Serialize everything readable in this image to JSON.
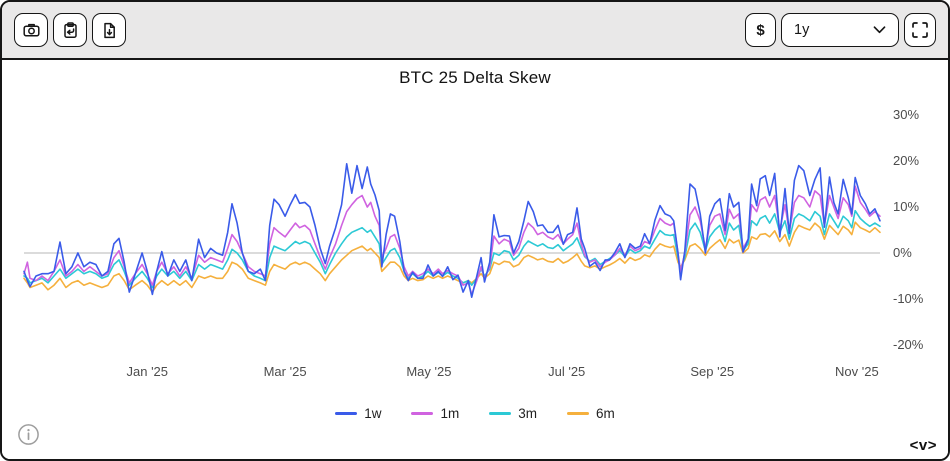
{
  "toolbar": {
    "left_buttons": [
      {
        "icon": "camera-icon"
      },
      {
        "icon": "clipboard-copy-icon"
      },
      {
        "icon": "file-download-icon"
      }
    ],
    "currency_label": "$",
    "timeframe_value": "1y"
  },
  "chart": {
    "title": "BTC 25 Delta Skew"
  },
  "footer": {
    "logo_text": "<v>"
  },
  "colors": {
    "frame_border": "#161616",
    "toolbar_bg": "#e9e8e8",
    "zero_line": "#cfcfcf",
    "axis_text": "#4c4c4c"
  },
  "chart_data": {
    "type": "line",
    "title": "BTC 25 Delta Skew",
    "xlabel": "",
    "ylabel": "",
    "y_unit": "%",
    "ylim": [
      -24,
      33
    ],
    "grid": false,
    "zero_line": true,
    "legend_position": "bottom",
    "y_axis_side": "right",
    "x_range": [
      "Nov '24",
      "Nov '25"
    ],
    "x_ticks": [
      {
        "label": "Jan '25",
        "pos": 0.144
      },
      {
        "label": "Mar '25",
        "pos": 0.305
      },
      {
        "label": "May '25",
        "pos": 0.473
      },
      {
        "label": "Jul '25",
        "pos": 0.634
      },
      {
        "label": "Sep '25",
        "pos": 0.804
      },
      {
        "label": "Nov '25",
        "pos": 0.973
      }
    ],
    "y_ticks": [
      {
        "label": "30%",
        "value": 30
      },
      {
        "label": "20%",
        "value": 20
      },
      {
        "label": "10%",
        "value": 10
      },
      {
        "label": "0%",
        "value": 0
      },
      {
        "label": "-10%",
        "value": -10
      },
      {
        "label": "-20%",
        "value": -20
      }
    ],
    "x": [
      0,
      0.004,
      0.007,
      0.014,
      0.021,
      0.028,
      0.035,
      0.042,
      0.049,
      0.056,
      0.063,
      0.07,
      0.077,
      0.084,
      0.091,
      0.098,
      0.105,
      0.111,
      0.117,
      0.123,
      0.13,
      0.138,
      0.144,
      0.15,
      0.155,
      0.161,
      0.168,
      0.175,
      0.182,
      0.189,
      0.196,
      0.204,
      0.211,
      0.218,
      0.225,
      0.232,
      0.238,
      0.243,
      0.249,
      0.255,
      0.262,
      0.269,
      0.276,
      0.282,
      0.287,
      0.292,
      0.298,
      0.305,
      0.311,
      0.317,
      0.322,
      0.328,
      0.334,
      0.34,
      0.346,
      0.352,
      0.357,
      0.364,
      0.371,
      0.377,
      0.383,
      0.389,
      0.395,
      0.401,
      0.405,
      0.41,
      0.415,
      0.418,
      0.423,
      0.428,
      0.433,
      0.439,
      0.444,
      0.449,
      0.454,
      0.46,
      0.466,
      0.472,
      0.478,
      0.484,
      0.489,
      0.495,
      0.501,
      0.507,
      0.513,
      0.519,
      0.523,
      0.529,
      0.534,
      0.538,
      0.544,
      0.549,
      0.555,
      0.561,
      0.567,
      0.572,
      0.578,
      0.584,
      0.589,
      0.595,
      0.6,
      0.606,
      0.612,
      0.618,
      0.624,
      0.63,
      0.635,
      0.641,
      0.646,
      0.651,
      0.655,
      0.661,
      0.667,
      0.673,
      0.679,
      0.684,
      0.69,
      0.696,
      0.702,
      0.708,
      0.714,
      0.72,
      0.725,
      0.731,
      0.737,
      0.743,
      0.749,
      0.755,
      0.759,
      0.764,
      0.767,
      0.772,
      0.778,
      0.784,
      0.79,
      0.796,
      0.801,
      0.807,
      0.813,
      0.819,
      0.824,
      0.829,
      0.835,
      0.84,
      0.846,
      0.85,
      0.856,
      0.86,
      0.866,
      0.871,
      0.877,
      0.883,
      0.889,
      0.894,
      0.9,
      0.905,
      0.911,
      0.918,
      0.924,
      0.93,
      0.935,
      0.941,
      0.946,
      0.951,
      0.957,
      0.963,
      0.967,
      0.971,
      0.977,
      0.983,
      0.988,
      0.994,
      1
    ],
    "series": [
      {
        "name": "1w",
        "color": "#3a5be9",
        "values": [
          -4,
          -6,
          -7.3,
          -5,
          -4.5,
          -4.5,
          -4,
          2.4,
          -4.5,
          -3,
          0,
          -3,
          -2,
          -2.5,
          -5,
          -4,
          2,
          3.2,
          -2,
          -8.5,
          -4.5,
          0,
          -4,
          -9,
          -4,
          0.3,
          -5,
          -1.5,
          -4,
          -1.5,
          -6,
          3,
          -1,
          1,
          0,
          -0.5,
          4.5,
          10.7,
          6.5,
          0,
          -4,
          -4.5,
          -3.5,
          -6,
          6,
          11.7,
          10.5,
          8,
          10.5,
          12.7,
          10.8,
          11,
          10,
          6,
          1,
          -2.3,
          1.5,
          5.5,
          10.5,
          19.4,
          13,
          19,
          14,
          18.7,
          15,
          12.6,
          9.2,
          -3,
          4,
          8.5,
          8,
          2.5,
          -4,
          -6,
          -4.2,
          -5.5,
          -5.5,
          -2.6,
          -5,
          -4,
          -5.1,
          -3,
          -5.8,
          -4.8,
          -8.5,
          -6,
          -9.6,
          -5,
          -1,
          -6.3,
          -2,
          8.3,
          3.5,
          3.8,
          3.7,
          0,
          2.5,
          7,
          11.2,
          9,
          5.9,
          6.1,
          4.5,
          4.5,
          6,
          1.9,
          4,
          4.5,
          9.8,
          3,
          1,
          -2.9,
          -2,
          -3.8,
          -1.5,
          -1.5,
          0,
          2,
          -1,
          2,
          1,
          1.5,
          4.2,
          2,
          7.1,
          10.3,
          8.5,
          8,
          7,
          0,
          -5.8,
          0.5,
          15,
          13.9,
          8.5,
          0,
          8,
          10.7,
          11.8,
          4.9,
          12.9,
          10,
          11,
          0.2,
          3,
          15,
          10.3,
          16.1,
          16.8,
          12.5,
          17.3,
          3.5,
          14,
          4.2,
          15.8,
          19,
          17.9,
          12.5,
          16,
          18.5,
          5.6,
          16.5,
          11,
          8.5,
          16,
          12,
          8.5,
          16.4,
          12.5,
          10.7,
          8.5,
          9.6,
          7
        ]
      },
      {
        "name": "1m",
        "color": "#d063e0",
        "values": [
          -4.5,
          -2,
          -5.5,
          -6,
          -5,
          -6,
          -4,
          -1.5,
          -5,
          -4,
          -2.5,
          -4,
          -3,
          -4,
          -5,
          -4.5,
          -1,
          0.5,
          -3,
          -6.5,
          -4.5,
          -2.5,
          -4.5,
          -7,
          -4,
          -2,
          -4.5,
          -3,
          -5,
          -3,
          -5.5,
          -0.5,
          -2,
          -1,
          -1.5,
          -2,
          1,
          4,
          2.5,
          0,
          -3,
          -4,
          -4.5,
          -5,
          2,
          5.5,
          4.5,
          3.5,
          5,
          6.5,
          5.5,
          6,
          5,
          2,
          -1,
          -3.5,
          -1,
          2,
          6,
          9,
          10.5,
          11.8,
          12.5,
          10,
          11,
          8,
          6,
          -1,
          1,
          3.5,
          4,
          1,
          -3,
          -5,
          -4,
          -5,
          -4.5,
          -3.5,
          -4.5,
          -3.5,
          -4.5,
          -3.8,
          -4.5,
          -5,
          -7,
          -6.5,
          -9,
          -6,
          -3,
          -5.5,
          -3,
          3.7,
          2,
          3,
          2.5,
          -0.5,
          1,
          4.5,
          6.5,
          5.5,
          4,
          4.5,
          3.5,
          3,
          4,
          2,
          3,
          4,
          6.5,
          2,
          -0.5,
          -2,
          -1.5,
          -3,
          -2,
          -1.5,
          -0.5,
          1,
          -0.5,
          1.5,
          0.5,
          1,
          2.5,
          2,
          5,
          7.5,
          6.5,
          6,
          6.5,
          0,
          -4.1,
          0,
          8.3,
          10,
          7,
          1,
          6,
          8,
          8.5,
          4,
          9.5,
          7.5,
          8.5,
          1,
          3,
          10.5,
          9,
          11.5,
          12.2,
          10,
          12.5,
          5,
          10.5,
          4.5,
          11,
          12.5,
          12,
          10,
          13.5,
          12.5,
          6,
          12.5,
          10,
          7.5,
          12,
          10.5,
          8,
          14.5,
          11,
          9.5,
          8,
          9,
          8
        ]
      },
      {
        "name": "3m",
        "color": "#2cc9d5",
        "values": [
          -5,
          -5.5,
          -6.5,
          -6,
          -5.5,
          -6.5,
          -5,
          -3.5,
          -5.5,
          -4.5,
          -3.5,
          -4.5,
          -4,
          -4.5,
          -5.5,
          -5,
          -2.5,
          -1.5,
          -4,
          -7,
          -5.5,
          -4,
          -5.5,
          -7.5,
          -5,
          -3.5,
          -5,
          -4,
          -5.5,
          -4,
          -6,
          -2.5,
          -3.5,
          -2.5,
          -3,
          -3.5,
          -1.5,
          0.8,
          0,
          -1.5,
          -4,
          -5,
          -5.5,
          -6,
          -1,
          1.5,
          1,
          0.5,
          1.5,
          2.5,
          2,
          2.5,
          2,
          0,
          -2,
          -4.5,
          -2.5,
          0,
          2,
          3.5,
          4.5,
          5,
          5.5,
          4.5,
          5,
          3.5,
          2,
          -2.5,
          -1,
          0.5,
          1,
          -1,
          -4,
          -5.5,
          -4.5,
          -5.5,
          -5,
          -4,
          -5,
          -4.2,
          -5,
          -4.2,
          -5,
          -5.5,
          -6.5,
          -6,
          -7,
          -5.5,
          -3.5,
          -5,
          -3.5,
          0,
          -0.5,
          0.5,
          0.2,
          -1.5,
          -0.5,
          1.5,
          2.6,
          2,
          1.5,
          2,
          1.2,
          1,
          1.8,
          0.5,
          1.2,
          2,
          3.3,
          1,
          -0.8,
          -1.8,
          -1.2,
          -2.5,
          -1.8,
          -1.2,
          -0.5,
          0.5,
          -0.8,
          0.8,
          0,
          0.5,
          1.5,
          1,
          3,
          4.9,
          4,
          3.8,
          4,
          -1,
          -3.5,
          -1,
          5,
          6.5,
          4.5,
          0.5,
          3.5,
          5,
          6,
          2.5,
          6.5,
          5,
          6,
          0.5,
          2,
          7,
          6,
          7.5,
          8.1,
          6.5,
          8.5,
          4.5,
          7,
          3,
          7.5,
          8.5,
          8,
          7,
          9,
          8,
          4,
          8.5,
          7,
          5.5,
          8,
          7,
          5.5,
          9.2,
          7.5,
          6.5,
          5.8,
          6.5,
          5.8
        ]
      },
      {
        "name": "6m",
        "color": "#f5b03d",
        "values": [
          -5.5,
          -6.5,
          -7.5,
          -7,
          -6.5,
          -8,
          -7,
          -5.5,
          -7.5,
          -6.5,
          -6,
          -7,
          -6.5,
          -7,
          -7.5,
          -7,
          -5,
          -4.5,
          -6,
          -8,
          -7,
          -6,
          -7,
          -8.5,
          -7,
          -6,
          -7,
          -6,
          -7,
          -6,
          -7.5,
          -5,
          -5.5,
          -5,
          -5.5,
          -5.5,
          -4,
          -2,
          -2.5,
          -3.5,
          -5.5,
          -6,
          -6.5,
          -7,
          -4,
          -2.5,
          -3,
          -3.5,
          -2.5,
          -2,
          -2.5,
          -2,
          -2.5,
          -3.5,
          -4.5,
          -6,
          -4.5,
          -3,
          -1.5,
          -0.5,
          0.5,
          1,
          1.5,
          0.5,
          1,
          0,
          -1,
          -4,
          -3,
          -2,
          -2,
          -3,
          -5,
          -6,
          -5.5,
          -6,
          -5.8,
          -5,
          -5.5,
          -5,
          -5.5,
          -5,
          -5.5,
          -6,
          -6.5,
          -6,
          -6.5,
          -5.5,
          -4.5,
          -5.5,
          -4.5,
          -2,
          -2.5,
          -1.8,
          -2,
          -3,
          -2.5,
          -1,
          -0.5,
          -1,
          -1.5,
          -1.2,
          -1.8,
          -2,
          -1.2,
          -2.2,
          -1.8,
          -1,
          -0.2,
          -1.8,
          -2.8,
          -3.2,
          -2.8,
          -3.5,
          -3,
          -2.6,
          -2,
          -1.2,
          -2.2,
          -1,
          -1.6,
          -1.2,
          -0.4,
          -0.8,
          0.8,
          2,
          1.5,
          1.2,
          1.5,
          -2,
          -3,
          -1.5,
          1.5,
          2,
          1,
          -0.5,
          1,
          2,
          2.9,
          1,
          3,
          2.2,
          2.8,
          0,
          1,
          3.5,
          3,
          4,
          4.2,
          3.5,
          4.8,
          2.5,
          4,
          1.5,
          4.5,
          6,
          5.5,
          5,
          6.5,
          5.5,
          3,
          6,
          5,
          4,
          5.8,
          5,
          4,
          6.7,
          5.5,
          5,
          4.5,
          5.5,
          4.5
        ]
      }
    ]
  }
}
